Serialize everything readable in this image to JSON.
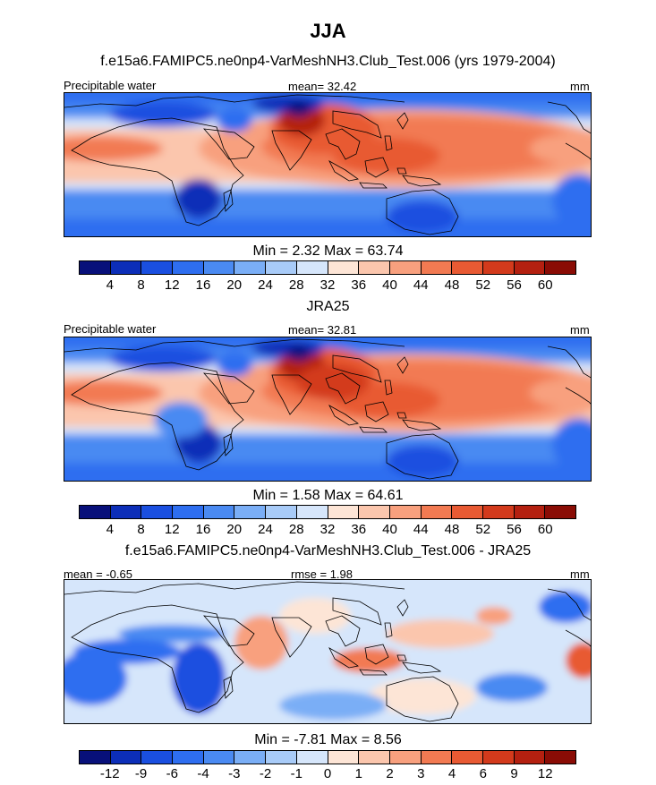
{
  "title": "JJA",
  "chart_data": [
    {
      "type": "heatmap",
      "id": "panel1",
      "title": "f.e15a6.FAMIPC5.ne0np4-VarMeshNH3.Club_Test.006 (yrs 1979-2004)",
      "left_label": "Precipitable water",
      "center_label": "mean=  32.42",
      "right_label": "mm",
      "min": 2.32,
      "max": 63.74,
      "minmax_text": "Min =   2.32 Max =  63.74",
      "contour_levels": [
        4,
        8,
        12,
        16,
        20,
        24,
        28,
        32,
        36,
        40,
        44,
        48,
        52,
        56,
        60
      ],
      "colorbar_ticks": [
        "4",
        "8",
        "12",
        "16",
        "20",
        "24",
        "28",
        "32",
        "36",
        "40",
        "44",
        "48",
        "52",
        "56",
        "60"
      ]
    },
    {
      "type": "heatmap",
      "id": "panel2",
      "title": "JRA25",
      "left_label": "Precipitable water",
      "center_label": "mean=  32.81",
      "right_label": "mm",
      "min": 1.58,
      "max": 64.61,
      "minmax_text": "Min =   1.58 Max =  64.61",
      "contour_levels": [
        4,
        8,
        12,
        16,
        20,
        24,
        28,
        32,
        36,
        40,
        44,
        48,
        52,
        56,
        60
      ],
      "colorbar_ticks": [
        "4",
        "8",
        "12",
        "16",
        "20",
        "24",
        "28",
        "32",
        "36",
        "40",
        "44",
        "48",
        "52",
        "56",
        "60"
      ]
    },
    {
      "type": "heatmap",
      "id": "panel3",
      "title": "f.e15a6.FAMIPC5.ne0np4-VarMeshNH3.Club_Test.006 - JRA25",
      "left_label": "mean =  -0.65",
      "center_label": "rmse =  1.98",
      "right_label": "mm",
      "min": -7.81,
      "max": 8.56,
      "minmax_text": "Min =  -7.81 Max =   8.56",
      "contour_levels": [
        -12,
        -9,
        -6,
        -4,
        -3,
        -2,
        -1,
        0,
        1,
        2,
        3,
        4,
        6,
        9,
        12
      ],
      "colorbar_ticks": [
        "-12",
        "-9",
        "-6",
        "-4",
        "-3",
        "-2",
        "-1",
        "0",
        "1",
        "2",
        "3",
        "4",
        "6",
        "9",
        "12"
      ]
    }
  ],
  "colors": {
    "palette": [
      "#08107a",
      "#0c2eb8",
      "#1a4fe0",
      "#2e6ef0",
      "#4a8af2",
      "#7aaef6",
      "#a8cbf8",
      "#d6e6fb",
      "#fde5d6",
      "#fbc6ad",
      "#f8a07e",
      "#f27a52",
      "#e85a33",
      "#d33a1c",
      "#b42010",
      "#8a0c05"
    ],
    "coast": "#000000"
  }
}
